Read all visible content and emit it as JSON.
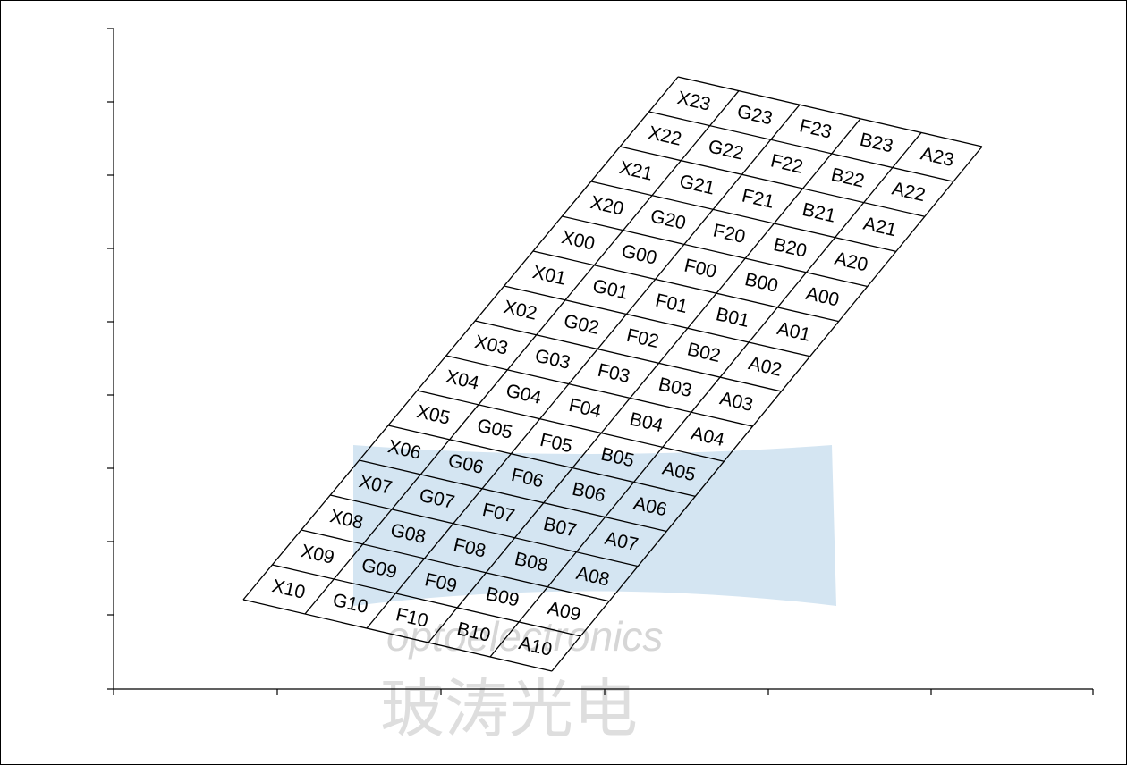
{
  "watermark": {
    "text": "optoelectronics",
    "cjk": "玻涛光电",
    "color": "#d4e5f2"
  },
  "grid": {
    "columns": [
      "X",
      "G",
      "F",
      "B",
      "A"
    ],
    "rows_top_to_bottom": [
      "23",
      "22",
      "21",
      "20",
      "00",
      "01",
      "02",
      "03",
      "04",
      "05",
      "06",
      "07",
      "08",
      "09",
      "10"
    ]
  }
}
